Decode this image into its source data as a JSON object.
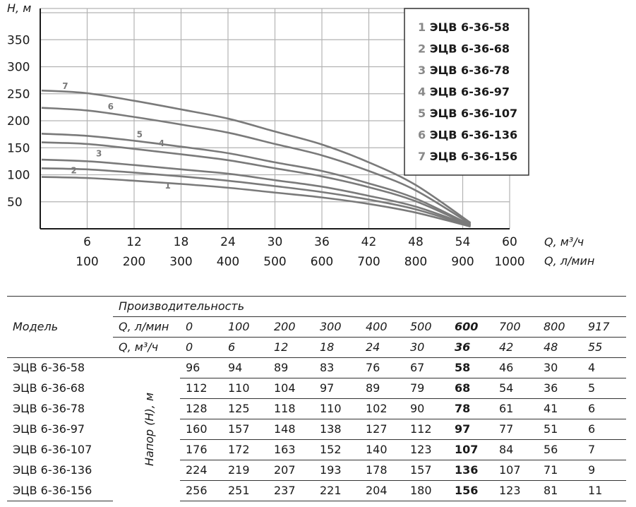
{
  "chart_data": {
    "type": "line",
    "y_label": "H, м",
    "x_label_m3": "Q, м³/ч",
    "x_label_lmin": "Q, л/мин",
    "y_ticks": [
      50,
      100,
      150,
      200,
      250,
      300,
      350
    ],
    "x_ticks_m3": [
      6,
      12,
      18,
      24,
      30,
      36,
      42,
      48,
      54,
      60
    ],
    "x_ticks_lmin": [
      100,
      200,
      300,
      400,
      500,
      600,
      700,
      800,
      900,
      1000
    ],
    "xlim": [
      0,
      60
    ],
    "ylim": [
      0,
      390
    ],
    "grid": true,
    "legend_placement": "top-right",
    "x": [
      0,
      6,
      12,
      18,
      24,
      30,
      36,
      42,
      48,
      55
    ],
    "series": [
      {
        "name": "ЭЦВ 6-36-58",
        "label": "1",
        "values": [
          96,
          94,
          89,
          83,
          76,
          67,
          58,
          46,
          30,
          4
        ]
      },
      {
        "name": "ЭЦВ 6-36-68",
        "label": "2",
        "values": [
          112,
          110,
          104,
          97,
          89,
          79,
          68,
          54,
          36,
          5
        ]
      },
      {
        "name": "ЭЦВ 6-36-78",
        "label": "3",
        "values": [
          128,
          125,
          118,
          110,
          102,
          90,
          78,
          61,
          41,
          6
        ]
      },
      {
        "name": "ЭЦВ 6-36-97",
        "label": "4",
        "values": [
          160,
          157,
          148,
          138,
          127,
          112,
          97,
          77,
          51,
          6
        ]
      },
      {
        "name": "ЭЦВ 6-36-107",
        "label": "5",
        "values": [
          176,
          172,
          163,
          152,
          140,
          123,
          107,
          84,
          56,
          7
        ]
      },
      {
        "name": "ЭЦВ 6-36-136",
        "label": "6",
        "values": [
          224,
          219,
          207,
          193,
          178,
          157,
          136,
          107,
          71,
          9
        ]
      },
      {
        "name": "ЭЦВ 6-36-156",
        "label": "7",
        "values": [
          256,
          251,
          237,
          221,
          204,
          180,
          156,
          123,
          81,
          11
        ]
      }
    ]
  },
  "table": {
    "header_model": "Модель",
    "header_perf": "Производительность",
    "row_q_lmin_label": "Q, л/мин",
    "row_q_m3_label": "Q, м³/ч",
    "q_lmin": [
      "0",
      "100",
      "200",
      "300",
      "400",
      "500",
      "600",
      "700",
      "800",
      "917"
    ],
    "q_m3": [
      "0",
      "6",
      "12",
      "18",
      "24",
      "30",
      "36",
      "42",
      "48",
      "55"
    ],
    "side_label": "Напор (Н), м",
    "highlight_index": 6,
    "rows": [
      {
        "model": "ЭЦВ 6-36-58",
        "values": [
          "96",
          "94",
          "89",
          "83",
          "76",
          "67",
          "58",
          "46",
          "30",
          "4"
        ]
      },
      {
        "model": "ЭЦВ 6-36-68",
        "values": [
          "112",
          "110",
          "104",
          "97",
          "89",
          "79",
          "68",
          "54",
          "36",
          "5"
        ]
      },
      {
        "model": "ЭЦВ 6-36-78",
        "values": [
          "128",
          "125",
          "118",
          "110",
          "102",
          "90",
          "78",
          "61",
          "41",
          "6"
        ]
      },
      {
        "model": "ЭЦВ 6-36-97",
        "values": [
          "160",
          "157",
          "148",
          "138",
          "127",
          "112",
          "97",
          "77",
          "51",
          "6"
        ]
      },
      {
        "model": "ЭЦВ 6-36-107",
        "values": [
          "176",
          "172",
          "163",
          "152",
          "140",
          "123",
          "107",
          "84",
          "56",
          "7"
        ]
      },
      {
        "model": "ЭЦВ 6-36-136",
        "values": [
          "224",
          "219",
          "207",
          "193",
          "178",
          "157",
          "136",
          "107",
          "71",
          "9"
        ]
      },
      {
        "model": "ЭЦВ 6-36-156",
        "values": [
          "256",
          "251",
          "237",
          "221",
          "204",
          "180",
          "156",
          "123",
          "81",
          "11"
        ]
      }
    ]
  },
  "colors": {
    "curve": "#7a7a7a",
    "grid": "#b3b3b3",
    "axis": "#1a1a1a",
    "legend_number": "#888888"
  }
}
